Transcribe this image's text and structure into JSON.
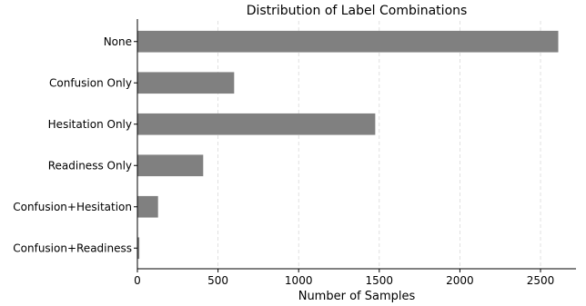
{
  "chart_data": {
    "type": "bar",
    "orientation": "horizontal",
    "title": "Distribution of Label Combinations",
    "xlabel": "Number of Samples",
    "ylabel": "",
    "categories": [
      "None",
      "Confusion Only",
      "Hesitation Only",
      "Readiness Only",
      "Confusion+Hesitation",
      "Confusion+Readiness"
    ],
    "values": [
      2610,
      600,
      1475,
      408,
      128,
      12
    ],
    "xlim": [
      0,
      2720
    ],
    "xticks": [
      0,
      500,
      1000,
      1500,
      2000,
      2500
    ],
    "grid": "x dashed",
    "legend": "none",
    "bar_color": "#808080"
  }
}
